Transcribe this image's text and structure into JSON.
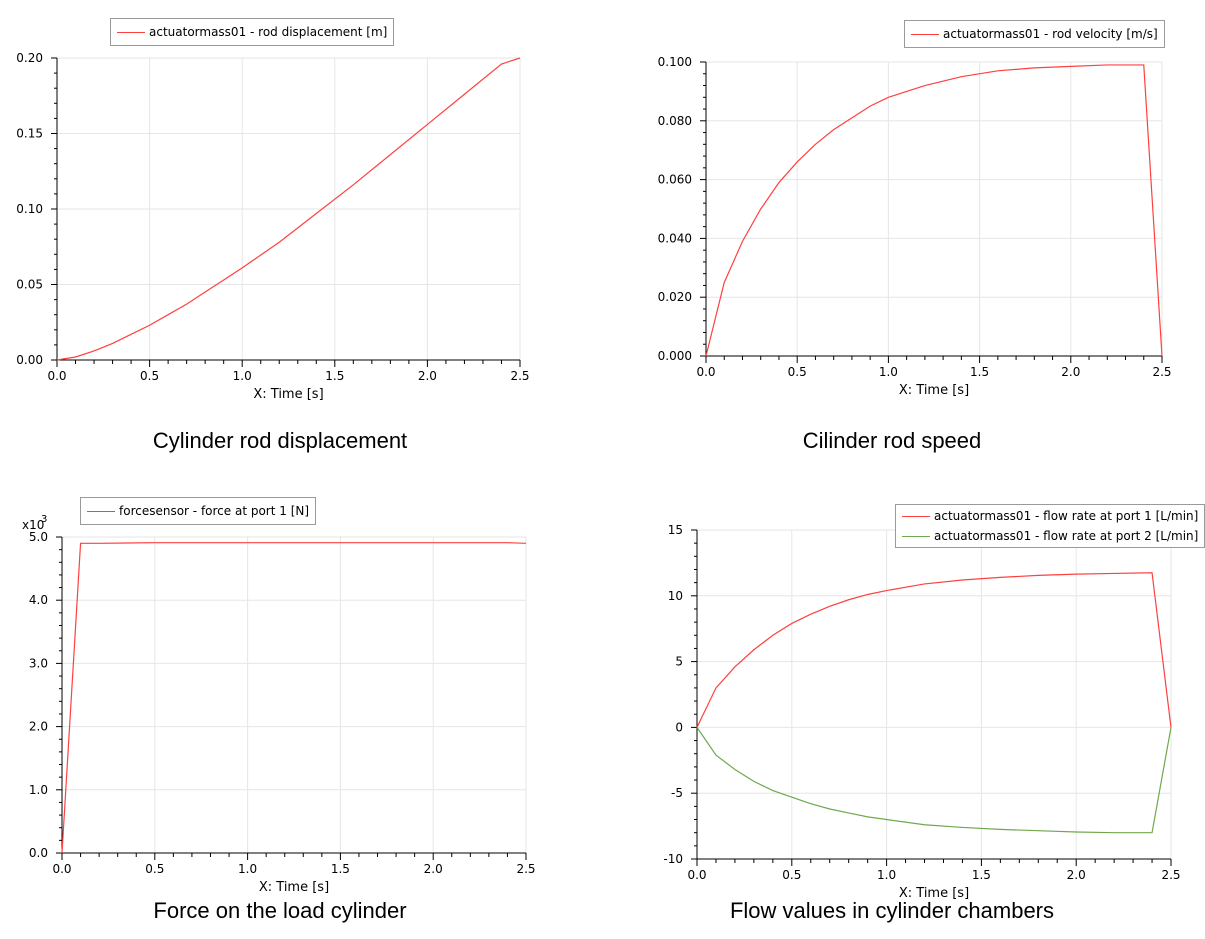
{
  "chart_data": [
    {
      "type": "line",
      "caption": "Cylinder rod displacement",
      "xlabel": "X: Time [s]",
      "ylabel": "",
      "xlim": [
        0,
        2.5
      ],
      "ylim": [
        0,
        0.2
      ],
      "xticks": [
        "0.0",
        "0.5",
        "1.0",
        "1.5",
        "2.0",
        "2.5"
      ],
      "yticks": [
        "0.00",
        "0.05",
        "0.10",
        "0.15",
        "0.20"
      ],
      "y_multiplier": "",
      "grid": true,
      "legend": "top-left",
      "series": [
        {
          "name": "actuatormass01 - rod displacement [m]",
          "color": "#ff4040",
          "x": [
            0,
            0.1,
            0.2,
            0.3,
            0.4,
            0.5,
            0.6,
            0.7,
            0.8,
            0.9,
            1.0,
            1.2,
            1.4,
            1.6,
            1.8,
            2.0,
            2.2,
            2.4,
            2.5
          ],
          "y": [
            0,
            0.002,
            0.006,
            0.011,
            0.017,
            0.023,
            0.03,
            0.037,
            0.045,
            0.053,
            0.061,
            0.078,
            0.097,
            0.116,
            0.136,
            0.156,
            0.176,
            0.196,
            0.2
          ]
        }
      ]
    },
    {
      "type": "line",
      "caption": "Cilinder rod speed",
      "xlabel": "X: Time [s]",
      "ylabel": "",
      "xlim": [
        0,
        2.5
      ],
      "ylim": [
        0,
        0.1
      ],
      "xticks": [
        "0.0",
        "0.5",
        "1.0",
        "1.5",
        "2.0",
        "2.5"
      ],
      "yticks": [
        "0.000",
        "0.020",
        "0.040",
        "0.060",
        "0.080",
        "0.100"
      ],
      "y_multiplier": "",
      "grid": true,
      "legend": "top-right",
      "series": [
        {
          "name": "actuatormass01 - rod velocity [m/s]",
          "color": "#ff4040",
          "x": [
            0,
            0.1,
            0.2,
            0.3,
            0.4,
            0.5,
            0.6,
            0.7,
            0.8,
            0.9,
            1.0,
            1.2,
            1.4,
            1.6,
            1.8,
            2.0,
            2.2,
            2.4,
            2.5
          ],
          "y": [
            0,
            0.025,
            0.039,
            0.05,
            0.059,
            0.066,
            0.072,
            0.077,
            0.081,
            0.085,
            0.088,
            0.092,
            0.095,
            0.097,
            0.098,
            0.0985,
            0.099,
            0.099,
            0
          ]
        }
      ]
    },
    {
      "type": "line",
      "caption": "Force on the load cylinder",
      "xlabel": "X: Time [s]",
      "ylabel": "",
      "xlim": [
        0,
        2.5
      ],
      "ylim": [
        0,
        5
      ],
      "xticks": [
        "0.0",
        "0.5",
        "1.0",
        "1.5",
        "2.0",
        "2.5"
      ],
      "yticks": [
        "0.0",
        "1.0",
        "2.0",
        "3.0",
        "4.0",
        "5.0"
      ],
      "y_multiplier": "x10",
      "y_multiplier_exp": "3",
      "grid": true,
      "legend": "top-left",
      "series": [
        {
          "name": "forcesensor - force at port 1 [N]",
          "color": "#ff4040",
          "x": [
            0,
            0.1,
            0.2,
            0.5,
            1.0,
            1.5,
            2.0,
            2.4,
            2.5
          ],
          "y": [
            0,
            4.9,
            4.9,
            4.91,
            4.91,
            4.91,
            4.91,
            4.91,
            4.9
          ]
        }
      ]
    },
    {
      "type": "line",
      "caption": "Flow values in cylinder chambers",
      "xlabel": "X: Time [s]",
      "ylabel": "",
      "xlim": [
        0,
        2.5
      ],
      "ylim": [
        -10,
        15
      ],
      "xticks": [
        "0.0",
        "0.5",
        "1.0",
        "1.5",
        "2.0",
        "2.5"
      ],
      "yticks": [
        "-10",
        "-5",
        "0",
        "5",
        "10",
        "15"
      ],
      "y_multiplier": "",
      "grid": true,
      "legend": "top-right",
      "series": [
        {
          "name": "actuatormass01 - flow rate at port 1 [L/min]",
          "color": "#ff4040",
          "x": [
            0,
            0.1,
            0.2,
            0.3,
            0.4,
            0.5,
            0.6,
            0.7,
            0.8,
            0.9,
            1.0,
            1.2,
            1.4,
            1.6,
            1.8,
            2.0,
            2.2,
            2.4,
            2.5
          ],
          "y": [
            0,
            3.0,
            4.6,
            5.9,
            7.0,
            7.9,
            8.6,
            9.2,
            9.7,
            10.1,
            10.4,
            10.9,
            11.2,
            11.4,
            11.55,
            11.65,
            11.7,
            11.75,
            0
          ]
        },
        {
          "name": "actuatormass01 - flow rate at port 2 [L/min]",
          "color": "#70a850",
          "x": [
            0,
            0.1,
            0.2,
            0.3,
            0.4,
            0.5,
            0.6,
            0.7,
            0.8,
            0.9,
            1.0,
            1.2,
            1.4,
            1.6,
            1.8,
            2.0,
            2.2,
            2.4,
            2.5
          ],
          "y": [
            0,
            -2.1,
            -3.2,
            -4.1,
            -4.8,
            -5.3,
            -5.8,
            -6.2,
            -6.5,
            -6.8,
            -7.0,
            -7.4,
            -7.6,
            -7.75,
            -7.85,
            -7.95,
            -8.0,
            -8.0,
            0
          ]
        }
      ]
    }
  ]
}
